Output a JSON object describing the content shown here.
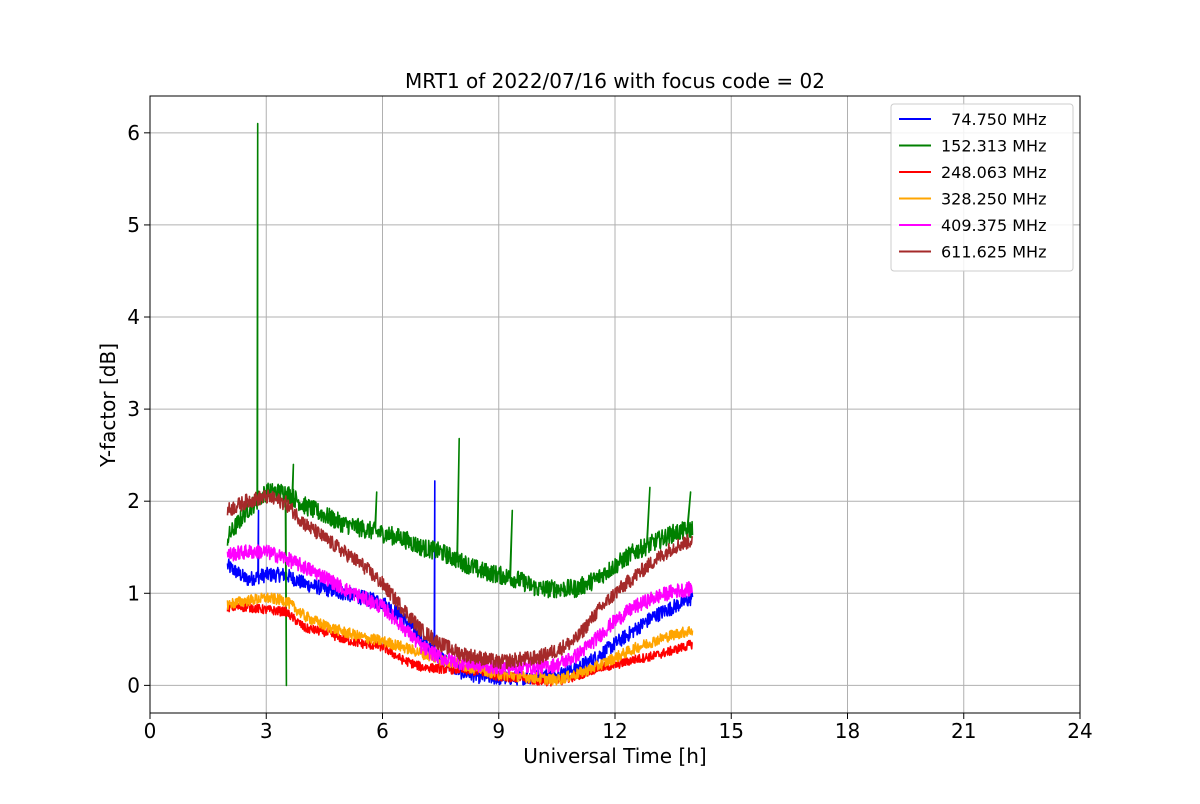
{
  "chart_data": {
    "type": "line",
    "title": "MRT1 of 2022/07/16 with focus code = 02",
    "xlabel": "Universal Time [h]",
    "ylabel": "Y-factor [dB]",
    "xlim": [
      0,
      24
    ],
    "ylim": [
      -0.3,
      6.4
    ],
    "xticks": [
      0,
      3,
      6,
      9,
      12,
      15,
      18,
      21,
      24
    ],
    "xtick_labels": [
      "0",
      "3",
      "6",
      "9",
      "12",
      "15",
      "18",
      "21",
      "24"
    ],
    "yticks": [
      0,
      1,
      2,
      3,
      4,
      5,
      6
    ],
    "ytick_labels": [
      "0",
      "1",
      "2",
      "3",
      "4",
      "5",
      "6"
    ],
    "grid": true,
    "legend_position": "top-right",
    "series": [
      {
        "name": "  74.750 MHz",
        "color": "#0000ff",
        "noise": 0.08,
        "x": [
          2.0,
          2.5,
          3.0,
          3.5,
          4.0,
          4.5,
          5.0,
          5.5,
          6.0,
          6.5,
          7.0,
          7.5,
          8.0,
          8.5,
          9.0,
          9.5,
          10.0,
          10.5,
          11.0,
          11.5,
          12.0,
          12.5,
          13.0,
          13.5,
          14.0
        ],
        "y": [
          1.3,
          1.15,
          1.2,
          1.2,
          1.1,
          1.05,
          1.0,
          0.95,
          0.9,
          0.75,
          0.5,
          0.3,
          0.15,
          0.1,
          0.08,
          0.08,
          0.1,
          0.12,
          0.18,
          0.3,
          0.45,
          0.6,
          0.75,
          0.85,
          0.95
        ],
        "spikes": [
          {
            "x": 7.35,
            "y": 2.22
          },
          {
            "x": 2.8,
            "y": 1.9
          }
        ]
      },
      {
        "name": "152.313 MHz",
        "color": "#008000",
        "noise": 0.1,
        "x": [
          2.0,
          2.5,
          3.0,
          3.5,
          4.0,
          4.5,
          5.0,
          5.5,
          6.0,
          6.5,
          7.0,
          7.5,
          8.0,
          8.5,
          9.0,
          9.5,
          10.0,
          10.5,
          11.0,
          11.5,
          12.0,
          12.5,
          13.0,
          13.5,
          14.0
        ],
        "y": [
          1.6,
          1.9,
          2.1,
          2.1,
          1.95,
          1.85,
          1.75,
          1.7,
          1.65,
          1.6,
          1.5,
          1.45,
          1.35,
          1.25,
          1.2,
          1.15,
          1.05,
          1.05,
          1.05,
          1.15,
          1.3,
          1.45,
          1.55,
          1.65,
          1.7
        ],
        "spikes": [
          {
            "x": 2.78,
            "y": 6.1
          },
          {
            "x": 3.52,
            "y": 0.0
          },
          {
            "x": 3.7,
            "y": 2.4
          },
          {
            "x": 5.85,
            "y": 2.1
          },
          {
            "x": 7.98,
            "y": 2.68
          },
          {
            "x": 9.35,
            "y": 1.9
          },
          {
            "x": 12.9,
            "y": 2.15
          },
          {
            "x": 13.95,
            "y": 2.1
          }
        ]
      },
      {
        "name": "248.063 MHz",
        "color": "#ff0000",
        "noise": 0.05,
        "x": [
          2.0,
          2.5,
          3.0,
          3.5,
          4.0,
          4.5,
          5.0,
          5.5,
          6.0,
          6.5,
          7.0,
          7.5,
          8.0,
          8.5,
          9.0,
          9.5,
          10.0,
          10.5,
          11.0,
          11.5,
          12.0,
          12.5,
          13.0,
          13.5,
          14.0
        ],
        "y": [
          0.85,
          0.85,
          0.82,
          0.8,
          0.62,
          0.58,
          0.5,
          0.45,
          0.42,
          0.28,
          0.2,
          0.18,
          0.17,
          0.15,
          0.1,
          0.08,
          0.05,
          0.04,
          0.1,
          0.18,
          0.22,
          0.28,
          0.32,
          0.38,
          0.45
        ],
        "spikes": []
      },
      {
        "name": "328.250 MHz",
        "color": "#ffa500",
        "noise": 0.06,
        "x": [
          2.0,
          2.5,
          3.0,
          3.5,
          4.0,
          4.5,
          5.0,
          5.5,
          6.0,
          6.5,
          7.0,
          7.5,
          8.0,
          8.5,
          9.0,
          9.5,
          10.0,
          10.5,
          11.0,
          11.5,
          12.0,
          12.5,
          13.0,
          13.5,
          14.0
        ],
        "y": [
          0.88,
          0.92,
          0.95,
          0.92,
          0.75,
          0.65,
          0.58,
          0.52,
          0.48,
          0.42,
          0.35,
          0.28,
          0.22,
          0.18,
          0.12,
          0.1,
          0.08,
          0.06,
          0.12,
          0.2,
          0.3,
          0.4,
          0.48,
          0.55,
          0.6
        ],
        "spikes": []
      },
      {
        "name": "409.375 MHz",
        "color": "#ff00ff",
        "noise": 0.08,
        "x": [
          2.0,
          2.5,
          3.0,
          3.5,
          4.0,
          4.5,
          5.0,
          5.5,
          6.0,
          6.5,
          7.0,
          7.5,
          8.0,
          8.5,
          9.0,
          9.5,
          10.0,
          10.5,
          11.0,
          11.5,
          12.0,
          12.5,
          13.0,
          13.5,
          14.0
        ],
        "y": [
          1.42,
          1.45,
          1.45,
          1.38,
          1.28,
          1.18,
          1.05,
          0.95,
          0.85,
          0.65,
          0.42,
          0.3,
          0.25,
          0.22,
          0.2,
          0.2,
          0.2,
          0.22,
          0.32,
          0.5,
          0.7,
          0.85,
          0.95,
          1.02,
          1.05
        ],
        "spikes": []
      },
      {
        "name": "611.625 MHz",
        "color": "#a52a2a",
        "noise": 0.08,
        "x": [
          2.0,
          2.5,
          3.0,
          3.5,
          4.0,
          4.5,
          5.0,
          5.5,
          6.0,
          6.5,
          7.0,
          7.5,
          8.0,
          8.5,
          9.0,
          9.5,
          10.0,
          10.5,
          11.0,
          11.5,
          12.0,
          12.5,
          13.0,
          13.5,
          14.0
        ],
        "y": [
          1.9,
          2.0,
          2.05,
          1.98,
          1.75,
          1.6,
          1.45,
          1.3,
          1.1,
          0.85,
          0.6,
          0.45,
          0.35,
          0.3,
          0.25,
          0.28,
          0.3,
          0.38,
          0.5,
          0.78,
          1.0,
          1.18,
          1.35,
          1.5,
          1.58
        ],
        "spikes": []
      }
    ]
  }
}
